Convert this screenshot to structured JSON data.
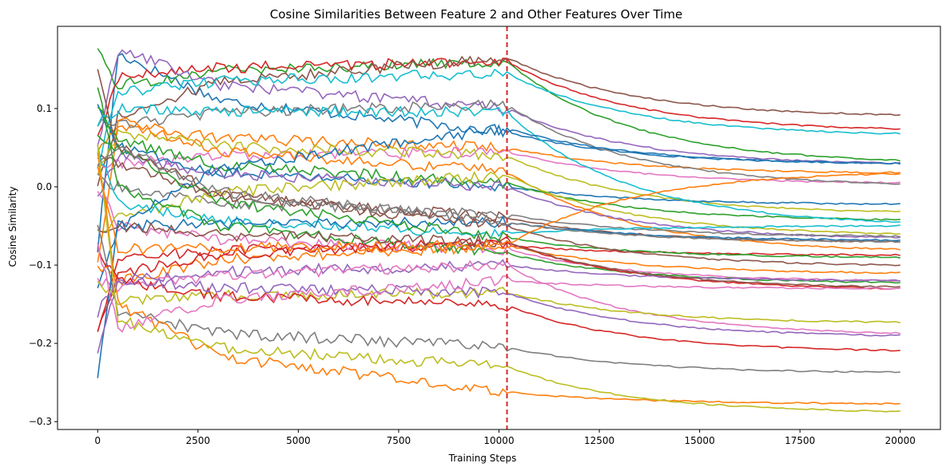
{
  "chart_data": {
    "type": "line",
    "title": "Cosine Similarities Between Feature 2 and Other Features Over Time",
    "xlabel": "Training Steps",
    "ylabel": "Cosine Similarity",
    "xlim": [
      -1000,
      21000
    ],
    "ylim": [
      -0.31,
      0.205
    ],
    "xticks": [
      0,
      2500,
      5000,
      7500,
      10000,
      12500,
      15000,
      17500,
      20000
    ],
    "xtick_labels": [
      "0",
      "2500",
      "5000",
      "7500",
      "10000",
      "12500",
      "15000",
      "17500",
      "20000"
    ],
    "yticks": [
      -0.3,
      -0.2,
      -0.1,
      0.0,
      0.1
    ],
    "ytick_labels": [
      "−0.3",
      "−0.2",
      "−0.1",
      "0.0",
      "0.1"
    ],
    "grid": false,
    "legend": "none",
    "vline": {
      "x": 10200,
      "color": "#d62728",
      "style": "dashed"
    },
    "series": [
      {
        "color": "#1f77b4",
        "start": -0.08,
        "peak": 0.17,
        "mid": 0.07,
        "end": 0.03
      },
      {
        "color": "#ff7f0e",
        "start": 0.05,
        "peak": 0.08,
        "mid": 0.05,
        "end": 0.018
      },
      {
        "color": "#2ca02c",
        "start": 0.17,
        "peak": 0.13,
        "mid": 0.16,
        "end": 0.034
      },
      {
        "color": "#d62728",
        "start": 0.06,
        "peak": 0.14,
        "mid": 0.16,
        "end": 0.074
      },
      {
        "color": "#9467bd",
        "start": 0.05,
        "peak": 0.175,
        "mid": 0.1,
        "end": 0.03
      },
      {
        "color": "#8c564b",
        "start": 0.0,
        "peak": 0.09,
        "mid": 0.165,
        "end": 0.092
      },
      {
        "color": "#e377c2",
        "start": 0.03,
        "peak": 0.03,
        "mid": 0.045,
        "end": 0.005
      },
      {
        "color": "#7f7f7f",
        "start": 0.08,
        "peak": 0.08,
        "mid": 0.105,
        "end": 0.004
      },
      {
        "color": "#bcbd22",
        "start": 0.02,
        "peak": 0.07,
        "mid": 0.04,
        "end": -0.032
      },
      {
        "color": "#17becf",
        "start": 0.03,
        "peak": 0.12,
        "mid": 0.145,
        "end": 0.068
      },
      {
        "color": "#1f77b4",
        "start": 0.1,
        "peak": 0.05,
        "mid": 0.0,
        "end": -0.022
      },
      {
        "color": "#ff7f0e",
        "start": -0.1,
        "peak": 0.085,
        "mid": 0.02,
        "end": -0.08
      },
      {
        "color": "#2ca02c",
        "start": 0.1,
        "peak": 0.06,
        "mid": 0.005,
        "end": -0.042
      },
      {
        "color": "#d62728",
        "start": -0.185,
        "peak": -0.09,
        "mid": -0.075,
        "end": -0.087
      },
      {
        "color": "#9467bd",
        "start": -0.01,
        "peak": 0.04,
        "mid": 0.0,
        "end": -0.065
      },
      {
        "color": "#8c564b",
        "start": 0.04,
        "peak": 0.03,
        "mid": -0.04,
        "end": -0.07
      },
      {
        "color": "#e377c2",
        "start": 0.0,
        "peak": -0.05,
        "mid": -0.08,
        "end": -0.12
      },
      {
        "color": "#7f7f7f",
        "start": 0.01,
        "peak": 0.0,
        "mid": -0.035,
        "end": -0.063
      },
      {
        "color": "#bcbd22",
        "start": -0.06,
        "peak": -0.04,
        "mid": 0.015,
        "end": -0.06
      },
      {
        "color": "#17becf",
        "start": 0.05,
        "peak": -0.02,
        "mid": -0.06,
        "end": -0.05
      },
      {
        "color": "#1f77b4",
        "start": -0.13,
        "peak": -0.05,
        "mid": -0.045,
        "end": -0.068
      },
      {
        "color": "#ff7f0e",
        "start": -0.1,
        "peak": -0.12,
        "mid": -0.075,
        "end": -0.11
      },
      {
        "color": "#2ca02c",
        "start": 0.13,
        "peak": 0.0,
        "mid": -0.085,
        "end": -0.122
      },
      {
        "color": "#d62728",
        "start": -0.18,
        "peak": -0.11,
        "mid": -0.07,
        "end": -0.13
      },
      {
        "color": "#9467bd",
        "start": -0.16,
        "peak": -0.12,
        "mid": -0.1,
        "end": -0.12
      },
      {
        "color": "#8c564b",
        "start": -0.06,
        "peak": -0.05,
        "mid": -0.07,
        "end": -0.128
      },
      {
        "color": "#e377c2",
        "start": -0.12,
        "peak": -0.13,
        "mid": -0.1,
        "end": -0.187
      },
      {
        "color": "#7f7f7f",
        "start": -0.05,
        "peak": -0.16,
        "mid": -0.205,
        "end": -0.237
      },
      {
        "color": "#bcbd22",
        "start": -0.12,
        "peak": -0.145,
        "mid": -0.135,
        "end": -0.173
      },
      {
        "color": "#17becf",
        "start": 0.08,
        "peak": 0.1,
        "mid": 0.095,
        "end": -0.045
      },
      {
        "color": "#1f77b4",
        "start": -0.24,
        "peak": -0.05,
        "mid": 0.075,
        "end": 0.03
      },
      {
        "color": "#ff7f0e",
        "start": 0.05,
        "peak": -0.15,
        "mid": -0.262,
        "end": -0.277
      },
      {
        "color": "#2ca02c",
        "start": 0.06,
        "peak": 0.05,
        "mid": -0.065,
        "end": -0.09
      },
      {
        "color": "#d62728",
        "start": -0.08,
        "peak": -0.12,
        "mid": -0.152,
        "end": -0.209
      },
      {
        "color": "#9467bd",
        "start": -0.215,
        "peak": -0.12,
        "mid": -0.135,
        "end": -0.19
      },
      {
        "color": "#8c564b",
        "start": 0.15,
        "peak": 0.05,
        "mid": -0.05,
        "end": -0.1
      },
      {
        "color": "#e377c2",
        "start": -0.07,
        "peak": -0.18,
        "mid": -0.12,
        "end": -0.13
      },
      {
        "color": "#7f7f7f",
        "start": 0.03,
        "peak": 0.05,
        "mid": -0.045,
        "end": -0.07
      },
      {
        "color": "#bcbd22",
        "start": 0.06,
        "peak": -0.17,
        "mid": -0.23,
        "end": -0.287
      },
      {
        "color": "#ff7f0e",
        "start": 0.02,
        "peak": -0.08,
        "mid": -0.075,
        "end": 0.017
      }
    ]
  }
}
